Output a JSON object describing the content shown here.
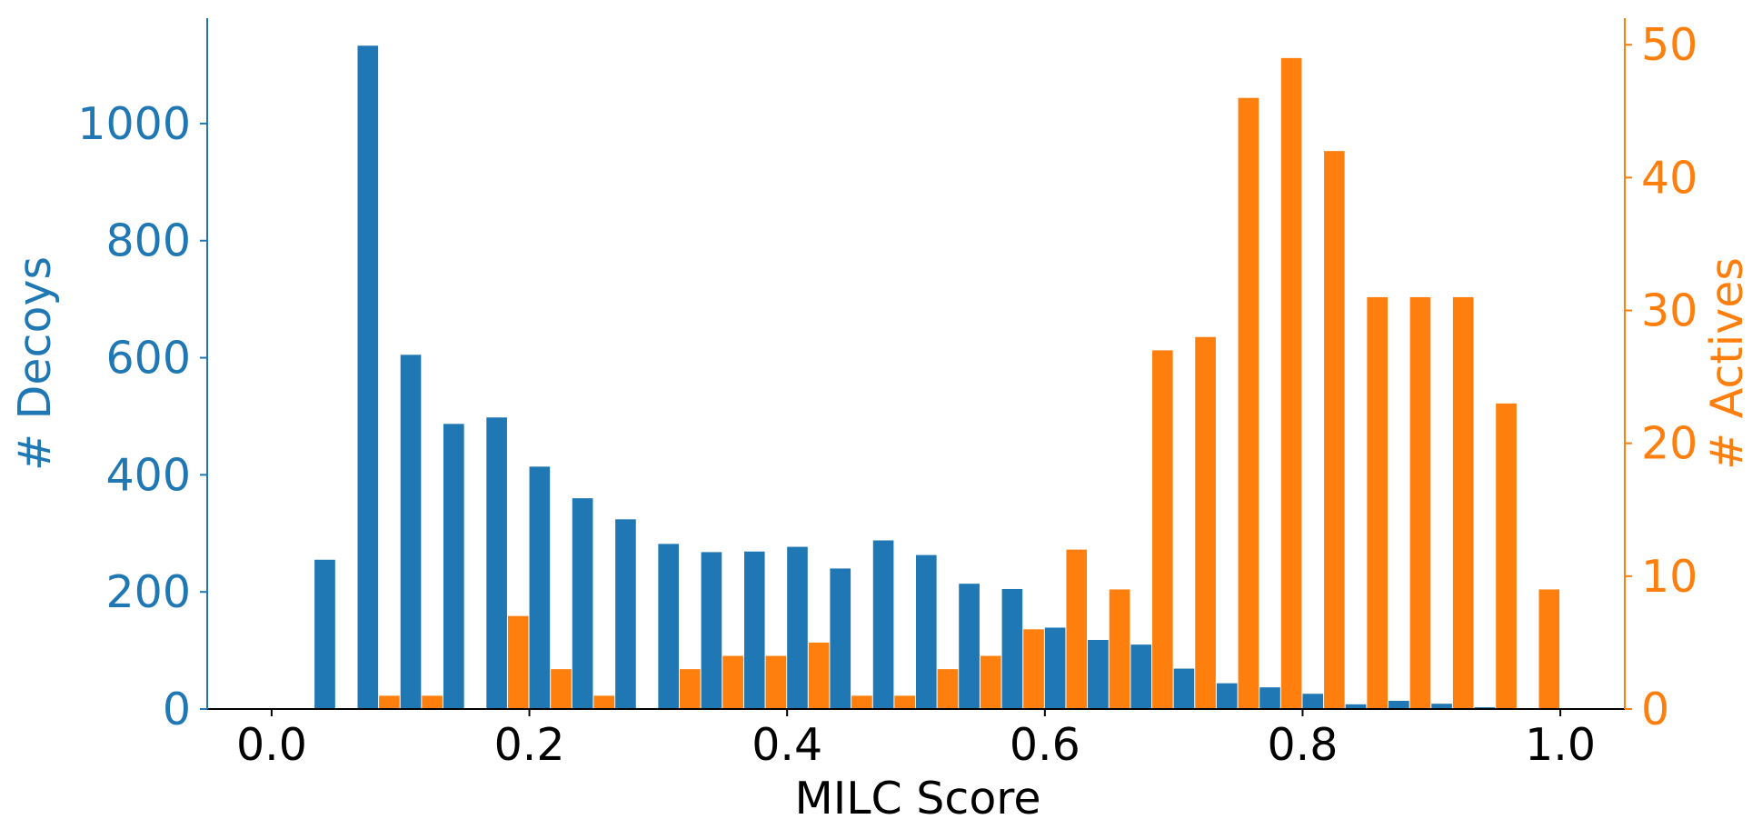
{
  "chart_data": {
    "type": "bar",
    "xlabel": "MILC Score",
    "ylabel_left": "# Decoys",
    "ylabel_right": "# Actives",
    "xlim": [
      -0.05,
      1.05
    ],
    "ylim_left": [
      0,
      1180
    ],
    "ylim_right": [
      0,
      52
    ],
    "xticks": [
      0.0,
      0.2,
      0.4,
      0.6,
      0.8,
      1.0
    ],
    "xtick_labels": [
      "0.0",
      "0.2",
      "0.4",
      "0.6",
      "0.8",
      "1.0"
    ],
    "yticks_left": [
      0,
      200,
      400,
      600,
      800,
      1000
    ],
    "ytick_labels_left": [
      "0",
      "200",
      "400",
      "600",
      "800",
      "1000"
    ],
    "yticks_right": [
      0,
      10,
      20,
      30,
      40,
      50
    ],
    "ytick_labels_right": [
      "0",
      "10",
      "20",
      "30",
      "40",
      "50"
    ],
    "bin_edges": [
      0.0,
      0.0333,
      0.0667,
      0.1,
      0.1333,
      0.1667,
      0.2,
      0.2333,
      0.2667,
      0.3,
      0.3333,
      0.3667,
      0.4,
      0.4333,
      0.4667,
      0.5,
      0.5333,
      0.5667,
      0.6,
      0.6333,
      0.6667,
      0.7,
      0.7333,
      0.7667,
      0.8,
      0.8333,
      0.8667,
      0.9,
      0.9333,
      0.9667,
      1.0
    ],
    "series": [
      {
        "axis": "left",
        "color": "#1f77b4",
        "values": [
          0,
          255,
          1133,
          605,
          487,
          498,
          414,
          360,
          324,
          282,
          268,
          269,
          277,
          240,
          288,
          263,
          214,
          205,
          139,
          118,
          110,
          69,
          44,
          37,
          26,
          8,
          14,
          9,
          3,
          1
        ]
      },
      {
        "axis": "right",
        "color": "#ff7f0e",
        "values": [
          0,
          0,
          1,
          1,
          0,
          7,
          3,
          1,
          0,
          3,
          4,
          4,
          5,
          1,
          1,
          3,
          4,
          6,
          12,
          9,
          27,
          28,
          46,
          49,
          42,
          31,
          31,
          31,
          23,
          9
        ]
      }
    ]
  }
}
